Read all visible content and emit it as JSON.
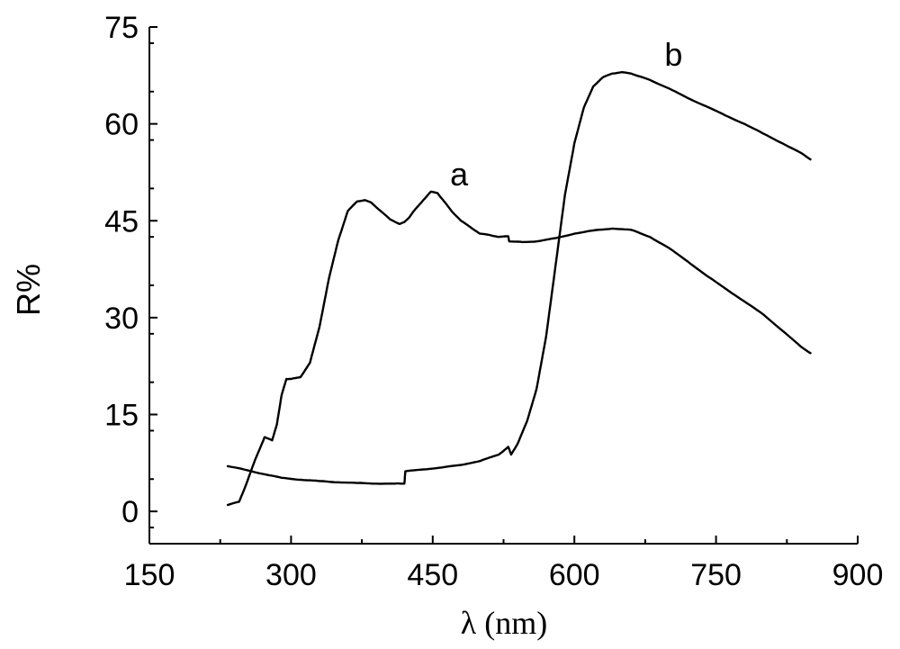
{
  "chart_data": {
    "type": "line",
    "title": "",
    "xlabel": "λ (nm)",
    "ylabel": "R%",
    "xlim": [
      150,
      900
    ],
    "ylim": [
      -5,
      75
    ],
    "xticks": [
      150,
      300,
      450,
      600,
      750,
      900
    ],
    "xtick_labels": [
      "150",
      "300",
      "450",
      "600",
      "750",
      "900"
    ],
    "yticks": [
      0,
      15,
      30,
      45,
      60,
      75
    ],
    "ytick_labels": [
      "0",
      "15",
      "30",
      "45",
      "60",
      "75"
    ],
    "grid": false,
    "series": [
      {
        "name": "a",
        "x": [
          233,
          245,
          252,
          262,
          272,
          280,
          285,
          290,
          295,
          300,
          310,
          320,
          330,
          340,
          350,
          360,
          370,
          378,
          385,
          395,
          405,
          415,
          420,
          425,
          430,
          440,
          448,
          455,
          462,
          470,
          480,
          490,
          500,
          510,
          520,
          530,
          531,
          545,
          560,
          580,
          600,
          620,
          640,
          660,
          680,
          700,
          720,
          740,
          760,
          780,
          800,
          820,
          840,
          850
        ],
        "y": [
          1.0,
          1.5,
          4.0,
          8.0,
          11.5,
          11.0,
          13.5,
          18.0,
          20.5,
          20.5,
          20.8,
          23.0,
          28.5,
          36.0,
          42.0,
          46.5,
          48.0,
          48.2,
          47.8,
          46.5,
          45.2,
          44.5,
          44.8,
          45.5,
          46.5,
          48.2,
          49.5,
          49.3,
          48.0,
          46.5,
          45.0,
          44.0,
          43.0,
          42.8,
          42.5,
          42.6,
          41.8,
          41.7,
          41.8,
          42.3,
          43.0,
          43.5,
          43.8,
          43.6,
          42.5,
          40.8,
          38.7,
          36.5,
          34.5,
          32.5,
          30.5,
          28.0,
          25.5,
          24.5
        ]
      },
      {
        "name": "b",
        "x": [
          233,
          250,
          270,
          290,
          310,
          330,
          350,
          370,
          390,
          410,
          420,
          421,
          440,
          460,
          480,
          500,
          520,
          530,
          533,
          540,
          550,
          560,
          570,
          580,
          590,
          600,
          610,
          620,
          630,
          640,
          650,
          660,
          670,
          680,
          700,
          720,
          740,
          760,
          780,
          800,
          820,
          840,
          850
        ],
        "y": [
          7.0,
          6.5,
          5.8,
          5.2,
          4.9,
          4.7,
          4.5,
          4.4,
          4.3,
          4.3,
          4.3,
          6.2,
          6.5,
          6.8,
          7.2,
          7.8,
          8.8,
          10.0,
          8.8,
          10.5,
          14.0,
          19.0,
          27.0,
          38.0,
          49.0,
          57.0,
          62.5,
          65.8,
          67.2,
          67.8,
          68.0,
          67.8,
          67.3,
          66.8,
          65.5,
          64.0,
          62.7,
          61.3,
          60.0,
          58.5,
          57.0,
          55.5,
          54.5
        ]
      }
    ],
    "annotations": [
      {
        "text": "a",
        "x": 478,
        "y": 50.5
      },
      {
        "text": "b",
        "x": 705,
        "y": 69.0
      }
    ]
  }
}
